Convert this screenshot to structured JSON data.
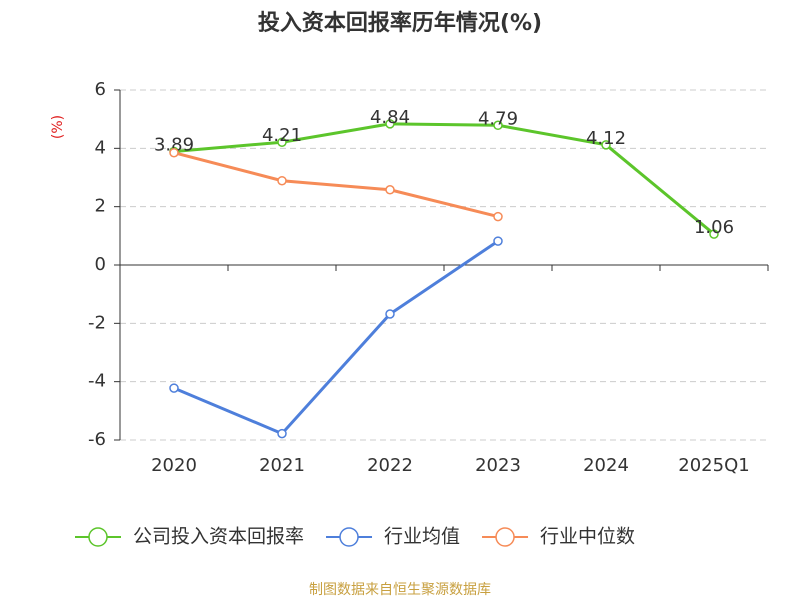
{
  "chart_data": {
    "type": "line",
    "title": "投入资本回报率历年情况(%)",
    "y_label": "(%)",
    "source": "制图数据来自恒生聚源数据库",
    "categories": [
      "2020",
      "2021",
      "2022",
      "2023",
      "2024",
      "2025Q1"
    ],
    "series": [
      {
        "name": "公司投入资本回报率",
        "color": "#5cc52b",
        "values": [
          3.89,
          4.21,
          4.84,
          4.79,
          4.12,
          1.06
        ],
        "data_labels": true
      },
      {
        "name": "行业均值",
        "color": "#4e7fdb",
        "values": [
          -4.22,
          -5.78,
          -1.68,
          0.82,
          null,
          null
        ],
        "data_labels": false
      },
      {
        "name": "行业中位数",
        "color": "#f68b57",
        "values": [
          3.85,
          2.89,
          2.58,
          1.66,
          null,
          null
        ],
        "data_labels": false
      }
    ],
    "ylim": [
      -6,
      6
    ],
    "yticks": [
      -6,
      -4,
      -2,
      0,
      2,
      4,
      6
    ],
    "grid": true
  }
}
